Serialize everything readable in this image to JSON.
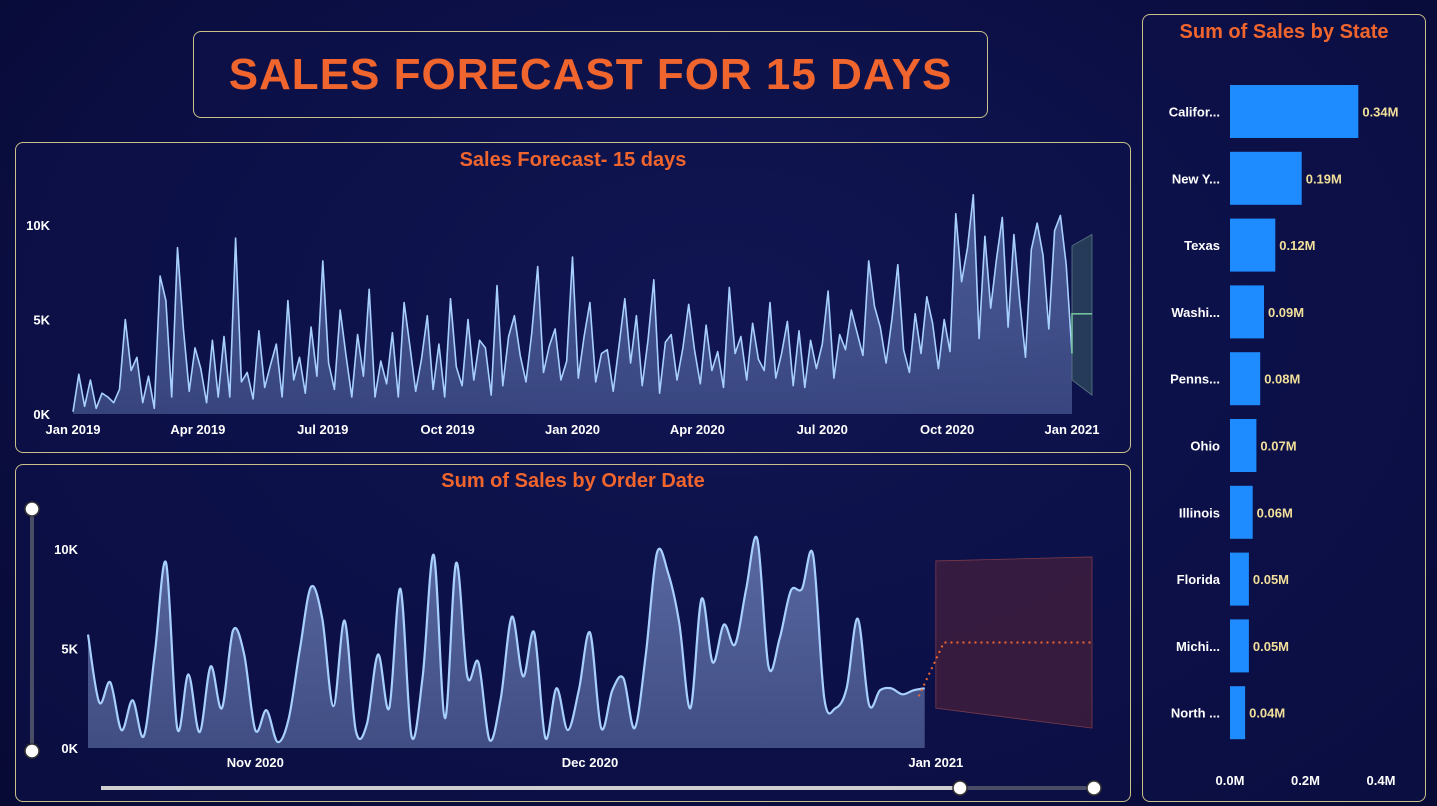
{
  "header": {
    "title": "SALES FORECAST FOR 15 DAYS"
  },
  "colors": {
    "accent": "#f0652d",
    "line": "#a8d0ff",
    "bar": "#1e8cff",
    "data_label": "#f2df9a",
    "forecast_1": "#6fbf9a",
    "forecast_2": "#f0652d"
  },
  "chart_data": [
    {
      "type": "line",
      "title": "Sales Forecast- 15 days",
      "xlabel": "",
      "ylabel": "",
      "x_ticks": [
        "Jan 2019",
        "Apr 2019",
        "Jul 2019",
        "Oct 2019",
        "Jan 2020",
        "Apr 2020",
        "Jul 2020",
        "Oct 2020",
        "Jan 2021"
      ],
      "y_ticks": [
        "0K",
        "5K",
        "10K"
      ],
      "ylim": [
        0,
        10000
      ],
      "series": [
        {
          "values": [
            120,
            2100,
            400,
            1800,
            300,
            1100,
            900,
            600,
            1300,
            5000,
            2300,
            3000,
            600,
            2000,
            300,
            7300,
            6000,
            900,
            8800,
            4500,
            1200,
            3500,
            2400,
            600,
            3900,
            900,
            4100,
            900,
            9300,
            1700,
            2200,
            800,
            4400,
            1400,
            2600,
            3700,
            900,
            6000,
            1800,
            3000,
            1100,
            4600,
            2000,
            8100,
            2700,
            1300,
            5500,
            3100,
            900,
            4200,
            2000,
            6600,
            900,
            2800,
            1600,
            4300,
            900,
            5900,
            3600,
            1200,
            2900,
            5200,
            1300,
            3700,
            900,
            6100,
            2500,
            1500,
            5000,
            1800,
            3900,
            3500,
            1000,
            6800,
            1500,
            4100,
            5200,
            3100,
            1700,
            4300,
            7800,
            2200,
            3600,
            4500,
            1800,
            2800,
            8300,
            1900,
            4100,
            5900,
            1700,
            3200,
            3400,
            1200,
            3600,
            6100,
            2700,
            5200,
            1500,
            3900,
            7100,
            1100,
            3800,
            4200,
            1800,
            3500,
            5800,
            3400,
            1600,
            4700,
            2300,
            3300,
            1400,
            6700,
            3200,
            4100,
            1800,
            4800,
            2900,
            2300,
            5900,
            1900,
            3200,
            4900,
            1500,
            4400,
            1400,
            3900,
            2400,
            3700,
            6500,
            1900,
            4200,
            3400,
            5500,
            4300,
            3100,
            8100,
            5700,
            4600,
            2700,
            5000,
            7900,
            3400,
            2200,
            5300,
            3200,
            6200,
            4800,
            2400,
            5000,
            3300,
            10600,
            7000,
            8800,
            11600,
            4000,
            9400,
            5600,
            8200,
            10400,
            4600,
            9500,
            6000,
            3000,
            8700,
            10100,
            8400,
            4500,
            9700,
            10500,
            7900,
            3200
          ]
        }
      ],
      "forecast": {
        "value": 5300,
        "upper": 9500,
        "lower": 1000
      }
    },
    {
      "type": "area",
      "title": "Sum of Sales by Order Date",
      "xlabel": "",
      "ylabel": "",
      "x_ticks": [
        "Nov 2020",
        "Dec 2020",
        "Jan 2021"
      ],
      "y_ticks": [
        "0K",
        "5K",
        "10K"
      ],
      "ylim": [
        0,
        10000
      ],
      "x_range": [
        "2020-10-17",
        "2021-01-15"
      ],
      "series": [
        {
          "x": [
            "2020-10-17",
            "2020-10-18",
            "2020-10-19",
            "2020-10-20",
            "2020-10-21",
            "2020-10-22",
            "2020-10-23",
            "2020-10-24",
            "2020-10-25",
            "2020-10-26",
            "2020-10-27",
            "2020-10-28",
            "2020-10-29",
            "2020-10-30",
            "2020-10-31",
            "2020-11-01",
            "2020-11-02",
            "2020-11-03",
            "2020-11-04",
            "2020-11-05",
            "2020-11-06",
            "2020-11-07",
            "2020-11-08",
            "2020-11-09",
            "2020-11-10",
            "2020-11-11",
            "2020-11-12",
            "2020-11-13",
            "2020-11-14",
            "2020-11-15",
            "2020-11-16",
            "2020-11-17",
            "2020-11-18",
            "2020-11-19",
            "2020-11-20",
            "2020-11-21",
            "2020-11-22",
            "2020-11-23",
            "2020-11-24",
            "2020-11-25",
            "2020-11-26",
            "2020-11-27",
            "2020-11-28",
            "2020-11-29",
            "2020-11-30",
            "2020-12-01",
            "2020-12-02",
            "2020-12-03",
            "2020-12-04",
            "2020-12-05",
            "2020-12-06",
            "2020-12-07",
            "2020-12-08",
            "2020-12-09",
            "2020-12-10",
            "2020-12-11",
            "2020-12-12",
            "2020-12-13",
            "2020-12-14",
            "2020-12-15",
            "2020-12-16",
            "2020-12-17",
            "2020-12-18",
            "2020-12-19",
            "2020-12-20",
            "2020-12-21",
            "2020-12-22",
            "2020-12-23",
            "2020-12-24",
            "2020-12-25",
            "2020-12-26",
            "2020-12-27",
            "2020-12-28",
            "2020-12-29",
            "2020-12-30",
            "2020-12-31"
          ],
          "values": [
            5700,
            2300,
            3300,
            900,
            2400,
            600,
            4800,
            9300,
            1000,
            3700,
            800,
            4100,
            2000,
            5900,
            4700,
            900,
            1900,
            300,
            1500,
            5000,
            8100,
            6500,
            2100,
            6400,
            900,
            1200,
            4700,
            2000,
            8000,
            600,
            3600,
            9700,
            1500,
            9300,
            3600,
            4300,
            400,
            2500,
            6600,
            3600,
            5800,
            500,
            3000,
            900,
            2900,
            5800,
            1000,
            2900,
            3500,
            1000,
            4700,
            9800,
            8800,
            6300,
            2000,
            7500,
            4300,
            6200,
            5200,
            8000,
            10500,
            4100,
            5500,
            7900,
            8000,
            9700,
            2500,
            2000,
            3000,
            6500,
            2200,
            2900,
            3000,
            2700,
            2900,
            3000
          ]
        }
      ],
      "forecast": {
        "value": 5300,
        "upper": 9600,
        "lower": 1000,
        "x": [
          "2021-01-01",
          "2021-01-15"
        ]
      }
    },
    {
      "type": "bar",
      "orientation": "horizontal",
      "title": "Sum of Sales by State",
      "xlabel": "",
      "ylabel": "",
      "categories": [
        "Califor...",
        "New Y...",
        "Texas",
        "Washi...",
        "Penns...",
        "Ohio",
        "Illinois",
        "Florida",
        "Michi...",
        "North ..."
      ],
      "values": [
        0.34,
        0.19,
        0.12,
        0.09,
        0.08,
        0.07,
        0.06,
        0.05,
        0.05,
        0.04
      ],
      "data_labels": [
        "0.34M",
        "0.19M",
        "0.12M",
        "0.09M",
        "0.08M",
        "0.07M",
        "0.06M",
        "0.05M",
        "0.05M",
        "0.04M"
      ],
      "x_ticks": [
        "0.0M",
        "0.2M",
        "0.4M"
      ],
      "xlim": [
        0,
        0.4
      ]
    }
  ]
}
